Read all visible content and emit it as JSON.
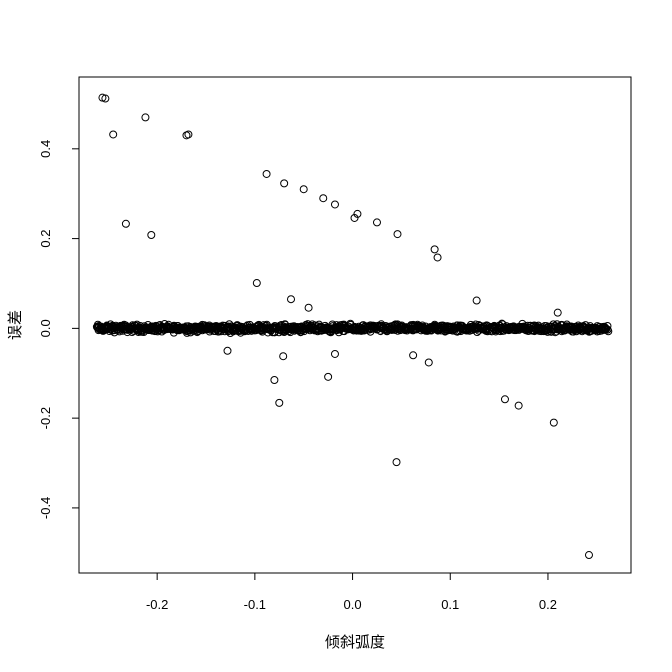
{
  "chart_data": {
    "type": "scatter",
    "title": "",
    "xlabel": "倾斜弧度",
    "ylabel": "误差",
    "xlim": [
      -0.28,
      0.285
    ],
    "ylim": [
      -0.545,
      0.56
    ],
    "xticks": [
      -0.2,
      -0.1,
      0.0,
      0.1,
      0.2
    ],
    "xtick_labels": [
      "-0.2",
      "-0.1",
      "0.0",
      "0.1",
      "0.2"
    ],
    "yticks": [
      -0.4,
      -0.2,
      0.0,
      0.2,
      0.4
    ],
    "ytick_labels": [
      "-0.4",
      "-0.2",
      "0.0",
      "0.2",
      "0.4"
    ],
    "grid": false,
    "legend": "none",
    "marker": "open-circle",
    "band": {
      "description": "dense cluster of points near zero error across the full x range",
      "x_range": [
        -0.262,
        0.262
      ],
      "y_spread": 0.012
    },
    "outliers": [
      {
        "x": -0.256,
        "y": 0.514
      },
      {
        "x": -0.253,
        "y": 0.512
      },
      {
        "x": -0.245,
        "y": 0.432
      },
      {
        "x": -0.212,
        "y": 0.47
      },
      {
        "x": -0.17,
        "y": 0.43
      },
      {
        "x": -0.168,
        "y": 0.432
      },
      {
        "x": -0.232,
        "y": 0.233
      },
      {
        "x": -0.206,
        "y": 0.208
      },
      {
        "x": -0.088,
        "y": 0.344
      },
      {
        "x": -0.07,
        "y": 0.323
      },
      {
        "x": -0.05,
        "y": 0.31
      },
      {
        "x": -0.03,
        "y": 0.29
      },
      {
        "x": -0.018,
        "y": 0.276
      },
      {
        "x": 0.002,
        "y": 0.246
      },
      {
        "x": 0.005,
        "y": 0.255
      },
      {
        "x": 0.025,
        "y": 0.236
      },
      {
        "x": 0.046,
        "y": 0.21
      },
      {
        "x": 0.084,
        "y": 0.176
      },
      {
        "x": 0.087,
        "y": 0.158
      },
      {
        "x": -0.098,
        "y": 0.101
      },
      {
        "x": -0.063,
        "y": 0.065
      },
      {
        "x": -0.045,
        "y": 0.046
      },
      {
        "x": 0.127,
        "y": 0.062
      },
      {
        "x": 0.21,
        "y": 0.035
      },
      {
        "x": -0.128,
        "y": -0.05
      },
      {
        "x": -0.08,
        "y": -0.115
      },
      {
        "x": -0.071,
        "y": -0.062
      },
      {
        "x": -0.075,
        "y": -0.166
      },
      {
        "x": -0.025,
        "y": -0.108
      },
      {
        "x": -0.018,
        "y": -0.057
      },
      {
        "x": 0.062,
        "y": -0.06
      },
      {
        "x": 0.078,
        "y": -0.076
      },
      {
        "x": 0.045,
        "y": -0.298
      },
      {
        "x": 0.156,
        "y": -0.158
      },
      {
        "x": 0.17,
        "y": -0.172
      },
      {
        "x": 0.206,
        "y": -0.21
      },
      {
        "x": 0.242,
        "y": -0.505
      }
    ]
  }
}
